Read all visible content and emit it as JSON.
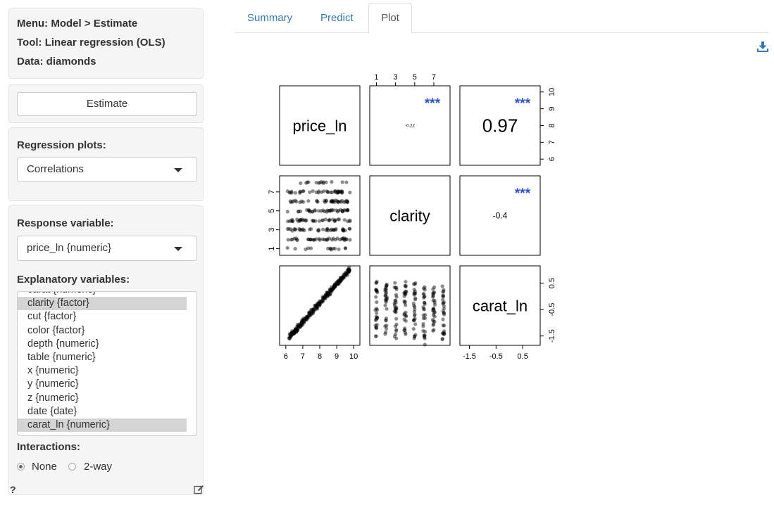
{
  "sidebar": {
    "menu": "Menu: Model > Estimate",
    "tool": "Tool: Linear regression (OLS)",
    "data": "Data: diamonds",
    "estimate_button": "Estimate",
    "plots_label": "Regression plots:",
    "plots_value": "Correlations",
    "response_label": "Response variable:",
    "response_value": "price_ln {numeric}",
    "explanatory_label": "Explanatory variables:",
    "explanatory_options": [
      {
        "label": "carat {numeric}",
        "selected": false
      },
      {
        "label": "clarity {factor}",
        "selected": true
      },
      {
        "label": "cut {factor}",
        "selected": false
      },
      {
        "label": "color {factor}",
        "selected": false
      },
      {
        "label": "depth {numeric}",
        "selected": false
      },
      {
        "label": "table {numeric}",
        "selected": false
      },
      {
        "label": "x {numeric}",
        "selected": false
      },
      {
        "label": "y {numeric}",
        "selected": false
      },
      {
        "label": "z {numeric}",
        "selected": false
      },
      {
        "label": "date {date}",
        "selected": false
      },
      {
        "label": "carat_ln {numeric}",
        "selected": true
      }
    ],
    "interactions_label": "Interactions:",
    "interaction_none": "None",
    "interaction_two_way": "2-way",
    "interaction_selected": "None",
    "help": "?"
  },
  "tabs": {
    "summary": "Summary",
    "predict": "Predict",
    "plot": "Plot",
    "active": "Plot"
  },
  "icons": {
    "download": "download-icon",
    "edit": "edit-icon"
  },
  "colors": {
    "link": "#337ab7",
    "stars": "#2c52d6",
    "points": "#000000"
  },
  "chart_data": {
    "type": "scatter",
    "variables": [
      "price_ln",
      "clarity",
      "carat_ln"
    ],
    "correlations": [
      {
        "pair": [
          "price_ln",
          "clarity"
        ],
        "value": "-0.22",
        "stars": "***"
      },
      {
        "pair": [
          "price_ln",
          "carat_ln"
        ],
        "value": "0.97",
        "stars": "***"
      },
      {
        "pair": [
          "clarity",
          "carat_ln"
        ],
        "value": "-0.4",
        "stars": "***"
      }
    ],
    "axes": {
      "price_ln": {
        "ticks": [
          "6",
          "7",
          "8",
          "9",
          "10"
        ],
        "range": [
          5.8,
          10.2
        ]
      },
      "clarity": {
        "ticks": [
          "1",
          "3",
          "5",
          "7"
        ],
        "range": [
          0.6,
          8.4
        ]
      },
      "carat_ln": {
        "ticks": [
          "-1.5",
          "-0.5",
          "0.5"
        ],
        "range": [
          -1.75,
          1.05
        ]
      }
    }
  }
}
